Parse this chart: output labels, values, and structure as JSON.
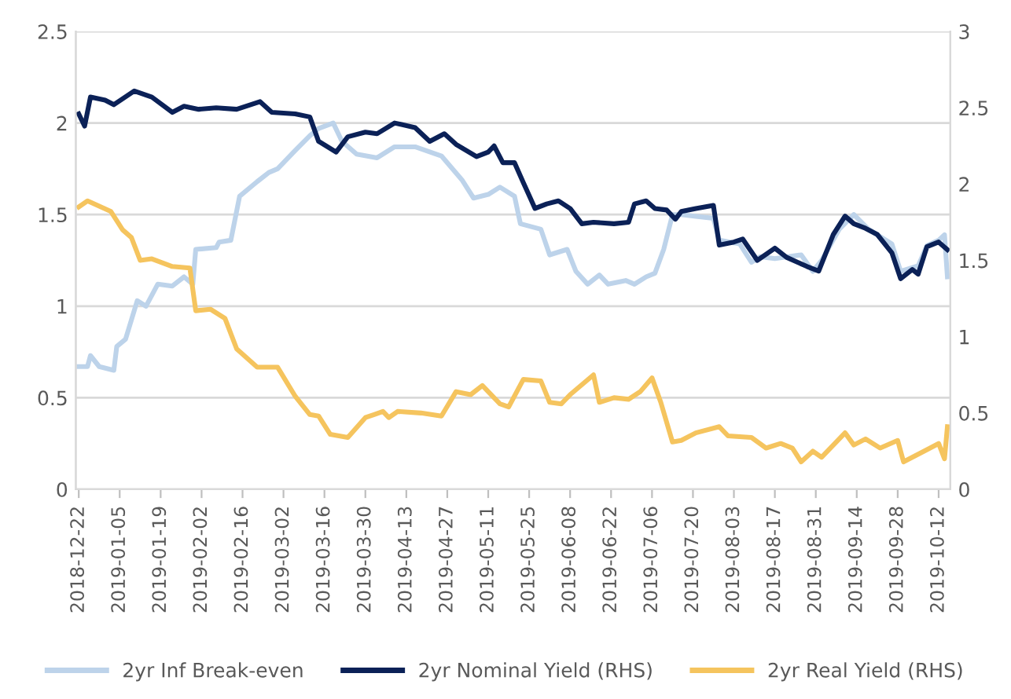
{
  "chart_data": {
    "type": "line",
    "xlim": [
      "2018-12-21",
      "2019-10-16"
    ],
    "xticks": [
      "2018-12-22",
      "2019-01-05",
      "2019-01-19",
      "2019-02-02",
      "2019-02-16",
      "2019-03-02",
      "2019-03-16",
      "2019-03-30",
      "2019-04-13",
      "2019-04-27",
      "2019-05-11",
      "2019-05-25",
      "2019-06-08",
      "2019-06-22",
      "2019-07-06",
      "2019-07-20",
      "2019-08-03",
      "2019-08-17",
      "2019-08-31",
      "2019-09-14",
      "2019-09-28",
      "2019-10-12"
    ],
    "ylim": [
      0,
      2.5
    ],
    "yticks": [
      0,
      0.5,
      1,
      1.5,
      2,
      2.5
    ],
    "y2lim": [
      0,
      3
    ],
    "y2ticks": [
      0,
      0.5,
      1,
      1.5,
      2,
      2.5,
      3
    ],
    "grid": "y",
    "legend": "bottom",
    "marker": "none",
    "line_style": "solid",
    "series": [
      {
        "name": "2yr Inf Break-even",
        "color": "#bdd3ea",
        "x": [
          "2018-12-22",
          "2018-12-25",
          "2018-12-26",
          "2018-12-29",
          "2019-01-03",
          "2019-01-04",
          "2019-01-07",
          "2019-01-11",
          "2019-01-14",
          "2019-01-18",
          "2019-01-23",
          "2019-01-27",
          "2019-01-30",
          "2019-01-31",
          "2019-02-07",
          "2019-02-08",
          "2019-02-12",
          "2019-02-15",
          "2019-02-21",
          "2019-02-25",
          "2019-02-28",
          "2019-03-06",
          "2019-03-11",
          "2019-03-14",
          "2019-03-19",
          "2019-03-22",
          "2019-03-27",
          "2019-04-03",
          "2019-04-09",
          "2019-04-16",
          "2019-04-25",
          "2019-05-02",
          "2019-05-06",
          "2019-05-11",
          "2019-05-15",
          "2019-05-20",
          "2019-05-22",
          "2019-05-29",
          "2019-06-01",
          "2019-06-07",
          "2019-06-10",
          "2019-06-14",
          "2019-06-18",
          "2019-06-21",
          "2019-06-27",
          "2019-06-30",
          "2019-07-04",
          "2019-07-07",
          "2019-07-10",
          "2019-07-13",
          "2019-07-16",
          "2019-07-21",
          "2019-07-27",
          "2019-07-29",
          "2019-08-05",
          "2019-08-09",
          "2019-08-12",
          "2019-08-17",
          "2019-08-26",
          "2019-08-30",
          "2019-09-02",
          "2019-09-08",
          "2019-09-13",
          "2019-09-18",
          "2019-09-26",
          "2019-09-29",
          "2019-10-05",
          "2019-10-08",
          "2019-10-12",
          "2019-10-14",
          "2019-10-15"
        ],
        "values": [
          0.67,
          0.67,
          0.73,
          0.67,
          0.65,
          0.78,
          0.82,
          1.03,
          1.0,
          1.12,
          1.11,
          1.16,
          1.12,
          1.31,
          1.32,
          1.35,
          1.36,
          1.6,
          1.68,
          1.73,
          1.75,
          1.85,
          1.93,
          1.97,
          2.0,
          1.9,
          1.83,
          1.81,
          1.87,
          1.87,
          1.82,
          1.69,
          1.59,
          1.61,
          1.65,
          1.6,
          1.45,
          1.42,
          1.28,
          1.31,
          1.19,
          1.12,
          1.17,
          1.12,
          1.14,
          1.12,
          1.16,
          1.18,
          1.31,
          1.5,
          1.5,
          1.49,
          1.48,
          1.36,
          1.34,
          1.24,
          1.27,
          1.26,
          1.28,
          1.19,
          1.25,
          1.42,
          1.5,
          1.42,
          1.34,
          1.19,
          1.22,
          1.33,
          1.36,
          1.39,
          1.16
        ]
      },
      {
        "name": "2yr Nominal Yield (RHS)",
        "color": "#0b2157",
        "axis": "y2",
        "x": [
          "2018-12-22",
          "2018-12-24",
          "2018-12-26",
          "2018-12-31",
          "2019-01-03",
          "2019-01-10",
          "2019-01-16",
          "2019-01-23",
          "2019-01-27",
          "2019-02-01",
          "2019-02-07",
          "2019-02-14",
          "2019-02-22",
          "2019-02-26",
          "2019-03-06",
          "2019-03-11",
          "2019-03-14",
          "2019-03-20",
          "2019-03-24",
          "2019-03-30",
          "2019-04-03",
          "2019-04-09",
          "2019-04-16",
          "2019-04-21",
          "2019-04-26",
          "2019-04-30",
          "2019-05-07",
          "2019-05-11",
          "2019-05-13",
          "2019-05-16",
          "2019-05-20",
          "2019-05-23",
          "2019-05-27",
          "2019-05-31",
          "2019-06-04",
          "2019-06-08",
          "2019-06-12",
          "2019-06-16",
          "2019-06-23",
          "2019-06-28",
          "2019-06-30",
          "2019-07-04",
          "2019-07-07",
          "2019-07-11",
          "2019-07-14",
          "2019-07-16",
          "2019-07-21",
          "2019-07-27",
          "2019-07-29",
          "2019-08-03",
          "2019-08-06",
          "2019-08-11",
          "2019-08-17",
          "2019-08-21",
          "2019-08-28",
          "2019-09-01",
          "2019-09-06",
          "2019-09-10",
          "2019-09-13",
          "2019-09-17",
          "2019-09-21",
          "2019-09-26",
          "2019-09-29",
          "2019-10-03",
          "2019-10-05",
          "2019-10-08",
          "2019-10-12",
          "2019-10-15"
        ],
        "values": [
          2.46,
          2.38,
          2.57,
          2.55,
          2.52,
          2.61,
          2.57,
          2.47,
          2.51,
          2.49,
          2.5,
          2.49,
          2.54,
          2.47,
          2.46,
          2.44,
          2.28,
          2.21,
          2.31,
          2.34,
          2.33,
          2.4,
          2.37,
          2.28,
          2.33,
          2.26,
          2.18,
          2.21,
          2.25,
          2.14,
          2.14,
          2.01,
          1.84,
          1.87,
          1.89,
          1.84,
          1.74,
          1.75,
          1.74,
          1.75,
          1.87,
          1.89,
          1.84,
          1.83,
          1.77,
          1.82,
          1.84,
          1.86,
          1.6,
          1.62,
          1.64,
          1.5,
          1.58,
          1.52,
          1.46,
          1.43,
          1.67,
          1.79,
          1.74,
          1.71,
          1.67,
          1.55,
          1.38,
          1.44,
          1.41,
          1.59,
          1.62,
          1.57
        ]
      },
      {
        "name": "2yr Real Yield (RHS)",
        "color": "#f5c45e",
        "axis": "y2",
        "x": [
          "2018-12-22",
          "2018-12-25",
          "2019-01-02",
          "2019-01-06",
          "2019-01-09",
          "2019-01-12",
          "2019-01-16",
          "2019-01-23",
          "2019-01-29",
          "2019-01-31",
          "2019-02-05",
          "2019-02-10",
          "2019-02-14",
          "2019-02-21",
          "2019-02-28",
          "2019-03-06",
          "2019-03-11",
          "2019-03-14",
          "2019-03-18",
          "2019-03-24",
          "2019-03-30",
          "2019-04-02",
          "2019-04-05",
          "2019-04-07",
          "2019-04-10",
          "2019-04-18",
          "2019-04-25",
          "2019-04-30",
          "2019-05-05",
          "2019-05-09",
          "2019-05-15",
          "2019-05-18",
          "2019-05-23",
          "2019-05-29",
          "2019-06-01",
          "2019-06-05",
          "2019-06-08",
          "2019-06-16",
          "2019-06-18",
          "2019-06-23",
          "2019-06-28",
          "2019-07-02",
          "2019-07-06",
          "2019-07-09",
          "2019-07-13",
          "2019-07-16",
          "2019-07-21",
          "2019-07-29",
          "2019-08-01",
          "2019-08-09",
          "2019-08-14",
          "2019-08-19",
          "2019-08-23",
          "2019-08-26",
          "2019-08-30",
          "2019-09-02",
          "2019-09-10",
          "2019-09-13",
          "2019-09-17",
          "2019-09-22",
          "2019-09-28",
          "2019-09-30",
          "2019-10-07",
          "2019-10-12",
          "2019-10-14",
          "2019-10-15"
        ],
        "values": [
          1.85,
          1.89,
          1.82,
          1.7,
          1.65,
          1.5,
          1.51,
          1.46,
          1.45,
          1.17,
          1.18,
          1.12,
          0.92,
          0.8,
          0.8,
          0.61,
          0.49,
          0.48,
          0.36,
          0.34,
          0.47,
          0.49,
          0.51,
          0.47,
          0.51,
          0.5,
          0.48,
          0.64,
          0.62,
          0.68,
          0.56,
          0.54,
          0.72,
          0.71,
          0.57,
          0.56,
          0.62,
          0.75,
          0.57,
          0.6,
          0.59,
          0.64,
          0.73,
          0.57,
          0.31,
          0.32,
          0.37,
          0.41,
          0.35,
          0.34,
          0.27,
          0.3,
          0.27,
          0.18,
          0.25,
          0.21,
          0.37,
          0.29,
          0.33,
          0.27,
          0.32,
          0.18,
          0.25,
          0.3,
          0.2,
          0.41
        ]
      }
    ]
  }
}
